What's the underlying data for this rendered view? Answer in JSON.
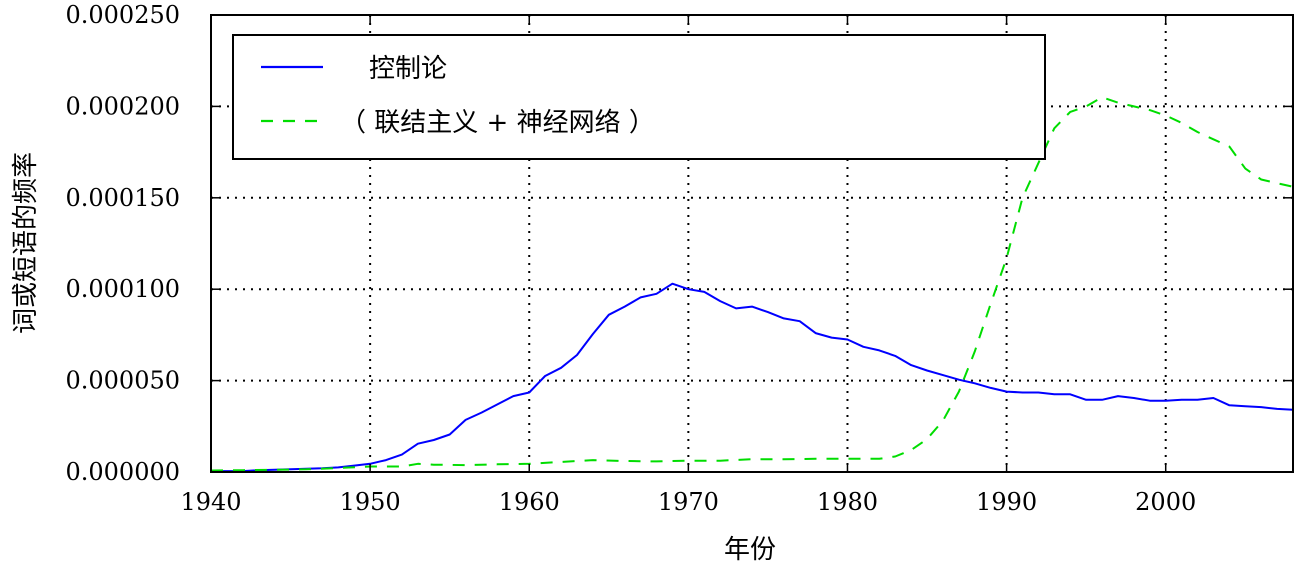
{
  "chart_data": {
    "type": "line",
    "xlabel": "年份",
    "ylabel": "词或短语的频率",
    "xlim": [
      1940,
      2008
    ],
    "ylim": [
      0,
      0.00025
    ],
    "xticks": [
      1940,
      1950,
      1960,
      1970,
      1980,
      1990,
      2000
    ],
    "xtick_labels": [
      "1940",
      "1950",
      "1960",
      "1970",
      "1980",
      "1990",
      "2000"
    ],
    "yticks": [
      0,
      5e-05,
      0.0001,
      0.00015,
      0.0002,
      0.00025
    ],
    "ytick_labels": [
      "0.000000",
      "0.000050",
      "0.000100",
      "0.000150",
      "0.000200",
      "0.000250"
    ],
    "grid": true,
    "legend_position": "top-left",
    "series": [
      {
        "name": "控制论",
        "color": "#0000ff",
        "style": "solid",
        "x": [
          1940,
          1941,
          1942,
          1943,
          1944,
          1945,
          1946,
          1947,
          1948,
          1949,
          1950,
          1951,
          1952,
          1953,
          1954,
          1955,
          1956,
          1957,
          1958,
          1959,
          1960,
          1961,
          1962,
          1963,
          1964,
          1965,
          1966,
          1967,
          1968,
          1969,
          1970,
          1971,
          1972,
          1973,
          1974,
          1975,
          1976,
          1977,
          1978,
          1979,
          1980,
          1981,
          1982,
          1983,
          1984,
          1985,
          1986,
          1987,
          1988,
          1989,
          1990,
          1991,
          1992,
          1993,
          1994,
          1995,
          1996,
          1997,
          1998,
          1999,
          2000,
          2001,
          2002,
          2003,
          2004,
          2005,
          2006,
          2007,
          2008
        ],
        "y": [
          5e-07,
          5e-07,
          5e-07,
          1e-06,
          1.2e-06,
          1.5e-06,
          1.8e-06,
          2e-06,
          2.5e-06,
          3.5e-06,
          4.5e-06,
          6.5e-06,
          9.5e-06,
          1.55e-05,
          1.75e-05,
          2.05e-05,
          2.85e-05,
          3.25e-05,
          3.7e-05,
          4.15e-05,
          4.35e-05,
          5.25e-05,
          5.7e-05,
          6.4e-05,
          7.55e-05,
          8.6e-05,
          9.05e-05,
          9.55e-05,
          9.75e-05,
          0.000103,
          0.0001,
          9.85e-05,
          9.35e-05,
          8.95e-05,
          9.05e-05,
          8.75e-05,
          8.4e-05,
          8.25e-05,
          7.6e-05,
          7.35e-05,
          7.25e-05,
          6.85e-05,
          6.65e-05,
          6.35e-05,
          5.85e-05,
          5.55e-05,
          5.3e-05,
          5.05e-05,
          4.85e-05,
          4.6e-05,
          4.4e-05,
          4.35e-05,
          4.35e-05,
          4.25e-05,
          4.25e-05,
          3.95e-05,
          3.95e-05,
          4.15e-05,
          4.05e-05,
          3.9e-05,
          3.9e-05,
          3.95e-05,
          3.95e-05,
          4.05e-05,
          3.65e-05,
          3.6e-05,
          3.55e-05,
          3.45e-05,
          3.4e-05
        ]
      },
      {
        "name": "（ 联结主义 + 神经网络 ）",
        "color": "#00dd00",
        "style": "dashed",
        "x": [
          1940,
          1942,
          1944,
          1946,
          1948,
          1950,
          1952,
          1953,
          1954,
          1956,
          1958,
          1960,
          1962,
          1964,
          1966,
          1968,
          1970,
          1972,
          1974,
          1976,
          1978,
          1980,
          1982,
          1983,
          1984,
          1985,
          1986,
          1987,
          1988,
          1989,
          1990,
          1991,
          1992,
          1993,
          1994,
          1995,
          1996,
          1997,
          1998,
          1999,
          2000,
          2001,
          2002,
          2003,
          2004,
          2005,
          2006,
          2007,
          2008
        ],
        "y": [
          8e-07,
          1e-06,
          1.2e-06,
          1.5e-06,
          2.2e-06,
          3e-06,
          3e-06,
          4.5e-06,
          4e-06,
          3.8e-06,
          4.2e-06,
          4.5e-06,
          5.5e-06,
          6.5e-06,
          6e-06,
          5.8e-06,
          6.2e-06,
          6.2e-06,
          7e-06,
          7e-06,
          7.2e-06,
          7.2e-06,
          7.2e-06,
          8.5e-06,
          1.2e-05,
          1.8e-05,
          2.8e-05,
          4.4e-05,
          6.6e-05,
          9.2e-05,
          0.000117,
          0.00015,
          0.000169,
          0.000188,
          0.000197,
          0.0002,
          0.000205,
          0.000202,
          0.0002,
          0.000198,
          0.000195,
          0.000191,
          0.000186,
          0.000182,
          0.000178,
          0.000166,
          0.00016,
          0.000158,
          0.000156
        ]
      }
    ]
  }
}
